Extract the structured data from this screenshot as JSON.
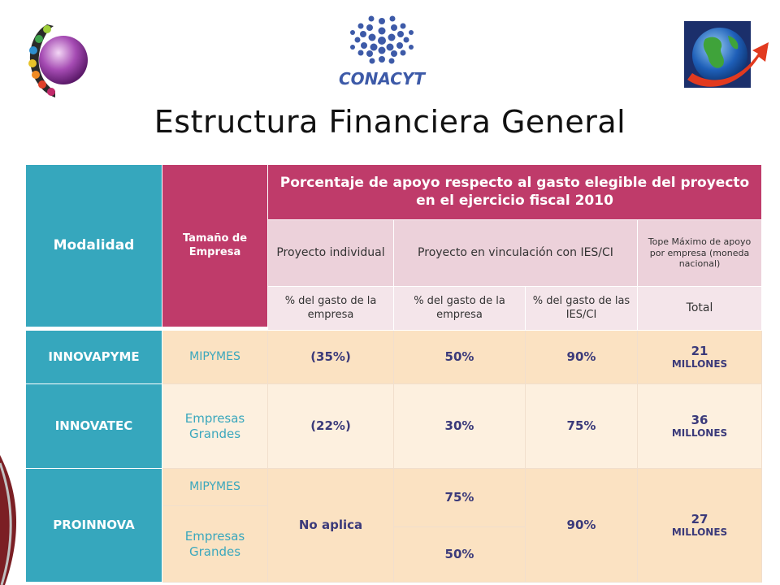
{
  "header": {
    "title": "Estructura Financiera General",
    "logos": {
      "left": "colorful-circle-logo",
      "center": "CONACYT",
      "right": "globe-arrow-logo"
    }
  },
  "table": {
    "col_modalidad": "Modalidad",
    "col_tamano": "Tamaño de Empresa",
    "col_porcentaje": "Porcentaje de apoyo respecto al gasto elegible del proyecto en el ejercicio fiscal 2010",
    "sub_individual": "Proyecto individual",
    "sub_vinculacion": "Proyecto en vinculación con IES/CI",
    "sub_tope": "Tope Máximo de apoyo por empresa (moneda nacional)",
    "gasto_empresa_1": "% del gasto de la empresa",
    "gasto_empresa_2": "% del gasto de la empresa",
    "gasto_ies": "% del gasto de las IES/CI",
    "total": "Total",
    "rows": [
      {
        "modalidad": "INNOVAPYME",
        "tamano": "MIPYMES",
        "individual": "(35%)",
        "empresa": "50%",
        "ies": "90%",
        "tope_num": "21",
        "tope_unit": "MILLONES"
      },
      {
        "modalidad": "INNOVATEC",
        "tamano": "Empresas Grandes",
        "individual": "(22%)",
        "empresa": "30%",
        "ies": "75%",
        "tope_num": "36",
        "tope_unit": "MILLONES"
      },
      {
        "modalidad": "PROINNOVA",
        "tamano_1": "MIPYMES",
        "tamano_2": "Empresas Grandes",
        "individual": "No aplica",
        "empresa_1": "75%",
        "empresa_2": "50%",
        "ies": "90%",
        "tope_num": "27",
        "tope_unit": "MILLONES"
      }
    ]
  },
  "colors": {
    "teal": "#36a7bd",
    "magenta": "#bf3b6a",
    "peach": "#fbe2c2",
    "pink_light": "#ecd1da"
  }
}
